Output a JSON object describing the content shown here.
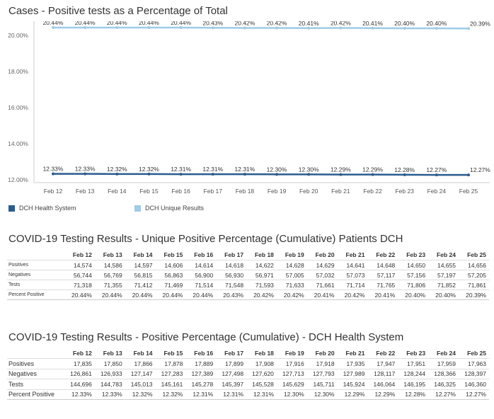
{
  "chart_data": {
    "type": "line",
    "title": "Cases - Positive tests as a Percentage of Total",
    "categories": [
      "Feb 12",
      "Feb 13",
      "Feb 14",
      "Feb 15",
      "Feb 16",
      "Feb 17",
      "Feb 18",
      "Feb 19",
      "Feb 20",
      "Feb 21",
      "Feb 22",
      "Feb 23",
      "Feb 24",
      "Feb 25"
    ],
    "ylim": [
      12,
      20.4
    ],
    "yticks": [
      "12.00%",
      "14.00%",
      "16.00%",
      "18.00%",
      "20.00%"
    ],
    "ytick_values": [
      12,
      14,
      16,
      18,
      20
    ],
    "grid": false,
    "legend": "bottom-left",
    "series": [
      {
        "name": "DCH Health System",
        "color": "#2a5c8f",
        "values": [
          12.33,
          12.33,
          12.32,
          12.32,
          12.31,
          12.31,
          12.31,
          12.3,
          12.3,
          12.29,
          12.29,
          12.28,
          12.27,
          12.27
        ],
        "labels": [
          "12.33%",
          "12.33%",
          "12.32%",
          "12.32%",
          "12.31%",
          "12.31%",
          "12.31%",
          "12.30%",
          "12.30%",
          "12.29%",
          "12.29%",
          "12.28%",
          "12.27%",
          "12.27%"
        ]
      },
      {
        "name": "DCH Unique Results",
        "color": "#9fcbe6",
        "values": [
          20.44,
          20.44,
          20.44,
          20.44,
          20.44,
          20.43,
          20.42,
          20.42,
          20.41,
          20.42,
          20.41,
          20.4,
          20.4,
          20.39
        ],
        "labels": [
          "20.44%",
          "20.44%",
          "20.44%",
          "20.44%",
          "20.44%",
          "20.43%",
          "20.42%",
          "20.42%",
          "20.41%",
          "20.42%",
          "20.41%",
          "20.40%",
          "20.40%",
          "20.39%"
        ]
      }
    ]
  },
  "tables": [
    {
      "title": "COVID-19 Testing Results - Unique Positive Percentage (Cumulative) Patients DCH",
      "columns": [
        "Feb 12",
        "Feb 13",
        "Feb 14",
        "Feb 15",
        "Feb 16",
        "Feb 17",
        "Feb 18",
        "Feb 19",
        "Feb 20",
        "Feb 21",
        "Feb 22",
        "Feb 23",
        "Feb 24",
        "Feb 25"
      ],
      "rows": [
        {
          "label": "Positives",
          "values": [
            "14,574",
            "14,586",
            "14,597",
            "14,606",
            "14,614",
            "14,618",
            "14,622",
            "14,628",
            "14,629",
            "14,641",
            "14,648",
            "14,650",
            "14,655",
            "14,656"
          ]
        },
        {
          "label": "Negatives",
          "values": [
            "56,744",
            "56,769",
            "56,815",
            "56,863",
            "56,900",
            "56,930",
            "56,971",
            "57,005",
            "57,032",
            "57,073",
            "57,117",
            "57,156",
            "57,197",
            "57,205"
          ]
        },
        {
          "label": "Tests",
          "values": [
            "71,318",
            "71,355",
            "71,412",
            "71,469",
            "71,514",
            "71,548",
            "71,593",
            "71,633",
            "71,661",
            "71,714",
            "71,765",
            "71,806",
            "71,852",
            "71,861"
          ]
        },
        {
          "label": "Percent Positive",
          "values": [
            "20.44%",
            "20.44%",
            "20.44%",
            "20.44%",
            "20.44%",
            "20.43%",
            "20.42%",
            "20.42%",
            "20.41%",
            "20.42%",
            "20.41%",
            "20.40%",
            "20.40%",
            "20.39%"
          ]
        }
      ]
    },
    {
      "title": "COVID-19 Testing Results - Positive Percentage (Cumulative) - DCH Health System",
      "columns": [
        "Feb 12",
        "Feb 13",
        "Feb 14",
        "Feb 15",
        "Feb 16",
        "Feb 17",
        "Feb 18",
        "Feb 19",
        "Feb 20",
        "Feb 21",
        "Feb 22",
        "Feb 23",
        "Feb 24",
        "Feb 25"
      ],
      "rows": [
        {
          "label": "Positives",
          "values": [
            "17,835",
            "17,850",
            "17,866",
            "17,878",
            "17,889",
            "17,899",
            "17,908",
            "17,916",
            "17,918",
            "17,935",
            "17,947",
            "17,951",
            "17,959",
            "17,963"
          ]
        },
        {
          "label": "Negatives",
          "values": [
            "126,861",
            "126,933",
            "127,147",
            "127,283",
            "127,389",
            "127,498",
            "127,620",
            "127,713",
            "127,793",
            "127,989",
            "128,117",
            "128,244",
            "128,366",
            "128,397"
          ]
        },
        {
          "label": "Tests",
          "values": [
            "144,696",
            "144,783",
            "145,013",
            "145,161",
            "145,278",
            "145,397",
            "145,528",
            "145,629",
            "145,711",
            "145,924",
            "146,064",
            "146,195",
            "146,325",
            "146,360"
          ]
        },
        {
          "label": "Percent Positive",
          "values": [
            "12.33%",
            "12.33%",
            "12.32%",
            "12.32%",
            "12.31%",
            "12.31%",
            "12.31%",
            "12.30%",
            "12.30%",
            "12.29%",
            "12.29%",
            "12.28%",
            "12.27%",
            "12.27%"
          ]
        }
      ]
    }
  ]
}
